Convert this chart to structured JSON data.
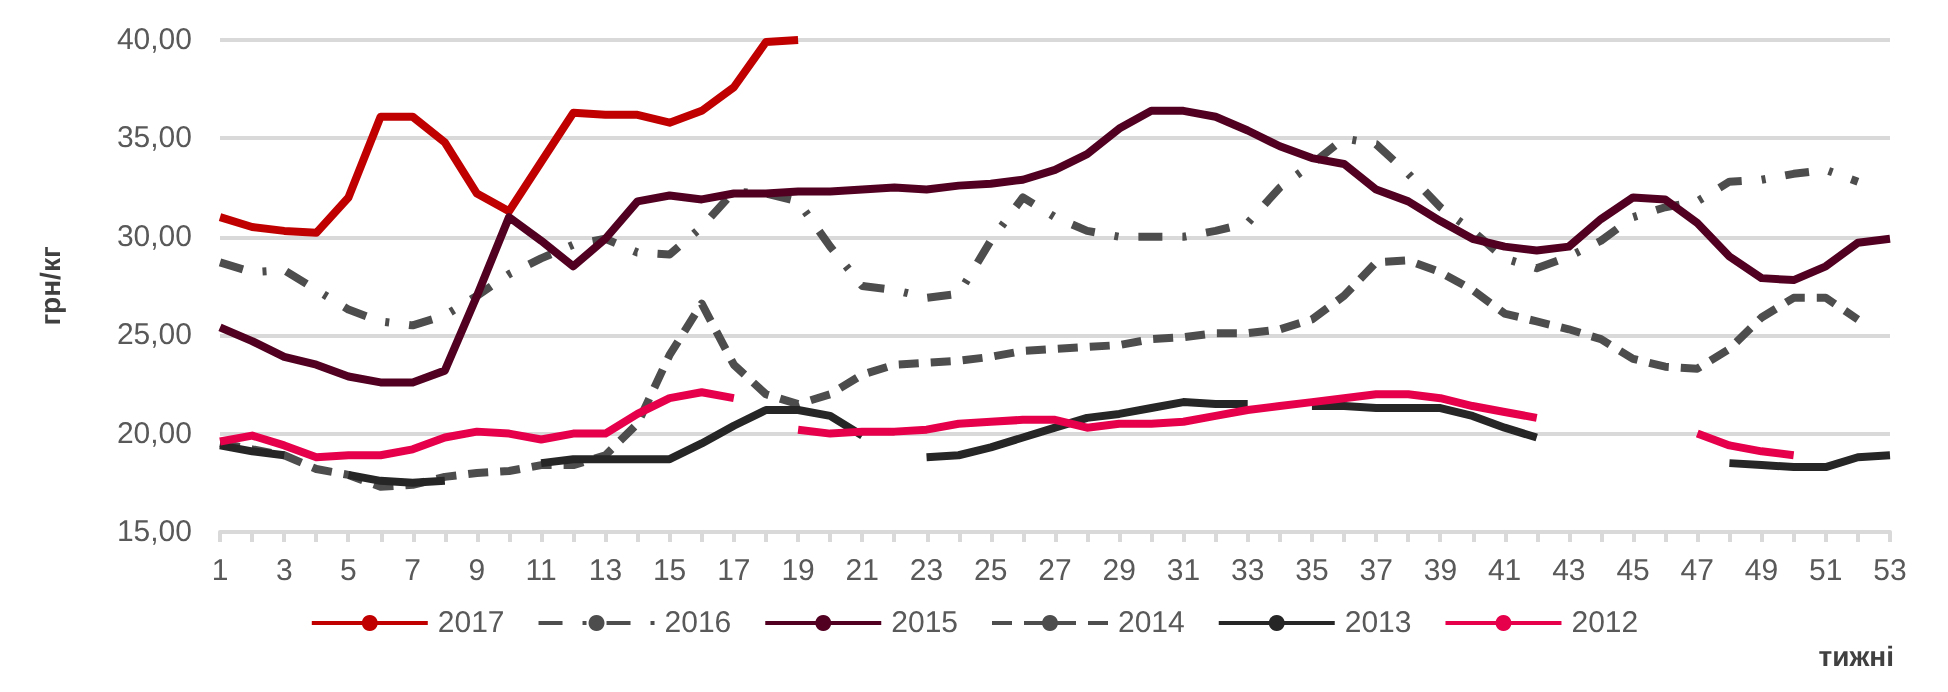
{
  "chart_data": {
    "type": "line",
    "xlabel": "тижні",
    "ylabel": "грн/кг",
    "x": [
      1,
      2,
      3,
      4,
      5,
      6,
      7,
      8,
      9,
      10,
      11,
      12,
      13,
      14,
      15,
      16,
      17,
      18,
      19,
      20,
      21,
      22,
      23,
      24,
      25,
      26,
      27,
      28,
      29,
      30,
      31,
      32,
      33,
      34,
      35,
      36,
      37,
      38,
      39,
      40,
      41,
      42,
      43,
      44,
      45,
      46,
      47,
      48,
      49,
      50,
      51,
      52,
      53
    ],
    "xlim": [
      1,
      53
    ],
    "xticks": [
      1,
      {
        "value": 2,
        "label": null
      },
      3,
      {
        "value": 4,
        "label": null
      },
      5,
      {
        "value": 6,
        "label": null
      },
      7,
      {
        "value": 8,
        "label": null
      },
      9,
      {
        "value": 10,
        "label": null
      },
      11,
      {
        "value": 12,
        "label": null
      },
      13,
      {
        "value": 14,
        "label": null
      },
      15,
      {
        "value": 16,
        "label": null
      },
      17,
      {
        "value": 18,
        "label": null
      },
      19,
      {
        "value": 20,
        "label": null
      },
      21,
      {
        "value": 22,
        "label": null
      },
      23,
      {
        "value": 24,
        "label": null
      },
      25,
      {
        "value": 26,
        "label": null
      },
      27,
      {
        "value": 28,
        "label": null
      },
      29,
      {
        "value": 30,
        "label": null
      },
      31,
      {
        "value": 32,
        "label": null
      },
      33,
      {
        "value": 34,
        "label": null
      },
      35,
      {
        "value": 36,
        "label": null
      },
      37,
      {
        "value": 38,
        "label": null
      },
      39,
      {
        "value": 40,
        "label": null
      },
      41,
      {
        "value": 42,
        "label": null
      },
      43,
      {
        "value": 44,
        "label": null
      },
      45,
      {
        "value": 46,
        "label": null
      },
      47,
      {
        "value": 48,
        "label": null
      },
      49,
      {
        "value": 50,
        "label": null
      },
      51,
      {
        "value": 52,
        "label": null
      },
      53
    ],
    "ylim": [
      15,
      40
    ],
    "yticks": [
      {
        "value": 15,
        "label": "15,00"
      },
      {
        "value": 20,
        "label": "20,00"
      },
      {
        "value": 25,
        "label": "25,00"
      },
      {
        "value": 30,
        "label": "30,00"
      },
      {
        "value": 35,
        "label": "35,00"
      },
      {
        "value": 40,
        "label": "40,00"
      }
    ],
    "grid": "y",
    "legend": "bottom",
    "marker": "none",
    "series": [
      {
        "name": "2017",
        "color": "#c00000",
        "line_style": "solid",
        "values": [
          31.0,
          30.5,
          30.3,
          30.2,
          32.0,
          36.1,
          36.1,
          34.8,
          32.2,
          31.3,
          33.8,
          36.3,
          36.2,
          36.2,
          35.8,
          36.4,
          37.6,
          39.9,
          40.0,
          null,
          null,
          null,
          null,
          null,
          null,
          null,
          null,
          null,
          null,
          null,
          null,
          null,
          null,
          null,
          null,
          null,
          null,
          null,
          null,
          null,
          null,
          null,
          null,
          null,
          null,
          null,
          null,
          null,
          null,
          null,
          null,
          null,
          null
        ]
      },
      {
        "name": "2016",
        "color": "#4d4d4d",
        "line_style": "dashdot",
        "values": [
          28.7,
          28.2,
          28.3,
          27.3,
          26.3,
          25.7,
          25.5,
          26.0,
          27.0,
          28.1,
          28.9,
          29.6,
          29.9,
          29.2,
          29.1,
          30.5,
          32.3,
          32.2,
          31.8,
          29.5,
          27.5,
          27.3,
          26.9,
          27.1,
          29.8,
          32.0,
          31.0,
          30.3,
          30.0,
          30.0,
          30.0,
          30.3,
          30.7,
          32.5,
          33.7,
          35.0,
          34.7,
          33.2,
          31.5,
          30.3,
          28.9,
          28.4,
          29.0,
          29.8,
          31.0,
          31.5,
          31.8,
          32.8,
          32.9,
          33.2,
          33.4,
          32.8,
          null
        ]
      },
      {
        "name": "2015",
        "color": "#520021",
        "line_style": "solid",
        "values": [
          25.4,
          24.7,
          23.9,
          23.5,
          22.9,
          22.6,
          22.6,
          23.2,
          27.0,
          31.0,
          29.8,
          28.5,
          29.9,
          31.8,
          32.1,
          31.9,
          32.2,
          32.2,
          32.3,
          32.3,
          32.4,
          32.5,
          32.4,
          32.6,
          32.7,
          32.9,
          33.4,
          34.2,
          35.5,
          36.4,
          36.4,
          36.1,
          35.4,
          34.6,
          34.0,
          33.7,
          32.4,
          31.8,
          30.8,
          29.9,
          29.5,
          29.3,
          29.5,
          30.9,
          32.0,
          31.9,
          30.7,
          29.0,
          27.9,
          27.8,
          28.5,
          29.7,
          29.9
        ]
      },
      {
        "name": "2014",
        "color": "#4d4d4d",
        "line_style": "dashed",
        "values": [
          19.5,
          19.2,
          18.9,
          18.2,
          17.9,
          17.3,
          17.4,
          17.8,
          18.0,
          18.1,
          18.4,
          18.4,
          18.9,
          20.5,
          24.0,
          26.6,
          23.5,
          22.0,
          21.5,
          22.0,
          23.0,
          23.5,
          23.6,
          23.7,
          23.9,
          24.2,
          24.3,
          24.4,
          24.5,
          24.8,
          24.9,
          25.1,
          25.1,
          25.3,
          25.8,
          27.0,
          28.7,
          28.8,
          28.2,
          27.3,
          26.1,
          25.7,
          25.3,
          24.8,
          23.8,
          23.4,
          23.3,
          24.3,
          25.9,
          26.9,
          26.9,
          25.8,
          null
        ]
      },
      {
        "name": "2013",
        "color": "#262626",
        "line_style": "solid",
        "values": [
          19.4,
          19.1,
          18.9,
          null,
          17.9,
          17.6,
          17.5,
          17.6,
          null,
          null,
          18.5,
          18.7,
          18.7,
          18.7,
          18.7,
          19.5,
          20.4,
          21.2,
          21.2,
          20.9,
          19.9,
          null,
          18.8,
          18.9,
          19.3,
          19.8,
          20.3,
          20.8,
          21.0,
          21.3,
          21.6,
          21.5,
          21.5,
          null,
          21.4,
          21.4,
          21.3,
          21.3,
          21.3,
          20.9,
          20.3,
          19.8,
          null,
          null,
          null,
          null,
          null,
          18.5,
          18.4,
          18.3,
          18.3,
          18.8,
          18.9
        ]
      },
      {
        "name": "2012",
        "color": "#e6004c",
        "line_style": "solid",
        "values": [
          19.6,
          19.9,
          19.4,
          18.8,
          18.9,
          18.9,
          19.2,
          19.8,
          20.1,
          20.0,
          19.7,
          20.0,
          20.0,
          21.0,
          21.8,
          22.1,
          21.8,
          null,
          20.2,
          20.0,
          20.1,
          20.1,
          20.2,
          20.5,
          20.6,
          20.7,
          20.7,
          20.3,
          20.5,
          20.5,
          20.6,
          20.9,
          21.2,
          21.4,
          21.6,
          21.8,
          22.0,
          22.0,
          21.8,
          21.4,
          21.1,
          20.8,
          null,
          null,
          null,
          null,
          20.0,
          19.4,
          19.1,
          18.9,
          null,
          null,
          null
        ]
      }
    ]
  }
}
